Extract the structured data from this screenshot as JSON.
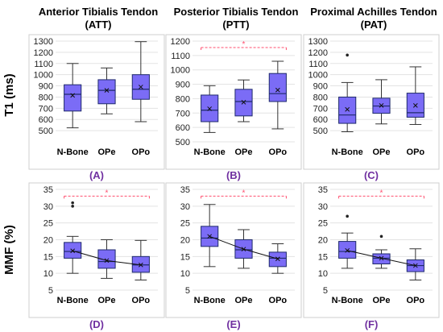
{
  "column_titles": [
    {
      "line1": "Anterior Tibialis Tendon",
      "line2": "(ATT)"
    },
    {
      "line1": "Posterior Tibialis Tendon",
      "line2": "(PTT)"
    },
    {
      "line1": "Proximal Achilles Tendon",
      "line2": "(PAT)"
    }
  ],
  "row_labels": [
    "T1 (ms)",
    "MMF (%)"
  ],
  "colors": {
    "box": "#7b6cf6",
    "box_stroke": "#1f2a6b",
    "sig": "#ff4d6d",
    "outlier": "#222222"
  },
  "chart_data": [
    {
      "type": "box",
      "panel_label": "(A)",
      "categories": [
        "N-Bone",
        "OPe",
        "OPo"
      ],
      "ylim": [
        400,
        1300
      ],
      "yticks": [
        500,
        600,
        700,
        800,
        900,
        1000,
        1100,
        1200,
        1300
      ],
      "boxes": [
        {
          "min": 525,
          "q1": 675,
          "median": 825,
          "q3": 910,
          "max": 1100,
          "mean": 815,
          "outliers": []
        },
        {
          "min": 650,
          "q1": 740,
          "median": 860,
          "q3": 955,
          "max": 1060,
          "mean": 860,
          "outliers": []
        },
        {
          "min": 580,
          "q1": 780,
          "median": 870,
          "q3": 1000,
          "max": 1295,
          "mean": 890,
          "outliers": []
        }
      ],
      "mean_line": false,
      "significance": null
    },
    {
      "type": "box",
      "panel_label": "(B)",
      "categories": [
        "N-Bone",
        "OPe",
        "OPo"
      ],
      "ylim": [
        500,
        1200
      ],
      "yticks": [
        500,
        600,
        700,
        800,
        900,
        1000,
        1100,
        1200
      ],
      "boxes": [
        {
          "min": 565,
          "q1": 640,
          "median": 720,
          "q3": 825,
          "max": 890,
          "mean": 730,
          "outliers": []
        },
        {
          "min": 640,
          "q1": 680,
          "median": 780,
          "q3": 865,
          "max": 930,
          "mean": 775,
          "outliers": []
        },
        {
          "min": 590,
          "q1": 780,
          "median": 835,
          "q3": 975,
          "max": 1060,
          "mean": 860,
          "outliers": []
        }
      ],
      "mean_line": false,
      "significance": {
        "from": 0,
        "to": 2,
        "label": "*",
        "y": 1155
      }
    },
    {
      "type": "box",
      "panel_label": "(C)",
      "categories": [
        "N-Bone",
        "OPe",
        "OPo"
      ],
      "ylim": [
        400,
        1300
      ],
      "yticks": [
        500,
        600,
        700,
        800,
        900,
        1000,
        1100,
        1200,
        1300
      ],
      "boxes": [
        {
          "min": 490,
          "q1": 565,
          "median": 640,
          "q3": 800,
          "max": 930,
          "mean": 690,
          "outliers": [
            1175
          ]
        },
        {
          "min": 560,
          "q1": 655,
          "median": 720,
          "q3": 790,
          "max": 955,
          "mean": 725,
          "outliers": []
        },
        {
          "min": 555,
          "q1": 620,
          "median": 660,
          "q3": 835,
          "max": 1070,
          "mean": 725,
          "outliers": []
        }
      ],
      "mean_line": false,
      "significance": null
    },
    {
      "type": "box",
      "panel_label": "(D)",
      "categories": [
        "N-Bone",
        "OPe",
        "OPo"
      ],
      "ylim": [
        5,
        35
      ],
      "yticks": [
        5,
        10,
        15,
        20,
        25,
        30,
        35
      ],
      "boxes": [
        {
          "min": 10,
          "q1": 14.5,
          "median": 16.5,
          "q3": 19.2,
          "max": 21,
          "mean": 16.7,
          "outliers": [
            30,
            31
          ]
        },
        {
          "min": 8.5,
          "q1": 11.5,
          "median": 13.5,
          "q3": 17,
          "max": 20,
          "mean": 13.8,
          "outliers": []
        },
        {
          "min": 8,
          "q1": 10.3,
          "median": 12.5,
          "q3": 15,
          "max": 19.8,
          "mean": 12.5,
          "outliers": []
        }
      ],
      "mean_line": true,
      "significance": {
        "from": 0,
        "to": 2,
        "label": "*",
        "y": 33
      }
    },
    {
      "type": "box",
      "panel_label": "(E)",
      "categories": [
        "N-Bone",
        "OPe",
        "OPo"
      ],
      "ylim": [
        5,
        35
      ],
      "yticks": [
        5,
        10,
        15,
        20,
        25,
        30,
        35
      ],
      "boxes": [
        {
          "min": 12,
          "q1": 18,
          "median": 20.5,
          "q3": 24,
          "max": 30.5,
          "mean": 21,
          "outliers": []
        },
        {
          "min": 11.5,
          "q1": 14.5,
          "median": 17,
          "q3": 20,
          "max": 23,
          "mean": 17.2,
          "outliers": []
        },
        {
          "min": 10,
          "q1": 12,
          "median": 14.5,
          "q3": 16.3,
          "max": 18.8,
          "mean": 14.3,
          "outliers": []
        }
      ],
      "mean_line": true,
      "significance": {
        "from": 0,
        "to": 2,
        "label": "*",
        "y": 33
      }
    },
    {
      "type": "box",
      "panel_label": "(F)",
      "categories": [
        "N-Bone",
        "OPe",
        "OPo"
      ],
      "ylim": [
        5,
        35
      ],
      "yticks": [
        5,
        10,
        15,
        20,
        25,
        30,
        35
      ],
      "boxes": [
        {
          "min": 11.5,
          "q1": 14.5,
          "median": 16.5,
          "q3": 19.5,
          "max": 22,
          "mean": 16.8,
          "outliers": [
            27
          ]
        },
        {
          "min": 11.5,
          "q1": 12.8,
          "median": 14.5,
          "q3": 15.8,
          "max": 17,
          "mean": 14.5,
          "outliers": [
            21
          ]
        },
        {
          "min": 8,
          "q1": 10.5,
          "median": 12.3,
          "q3": 14,
          "max": 17.3,
          "mean": 12.3,
          "outliers": []
        }
      ],
      "mean_line": true,
      "significance": {
        "from": 0,
        "to": 2,
        "label": "*",
        "y": 33
      }
    }
  ]
}
